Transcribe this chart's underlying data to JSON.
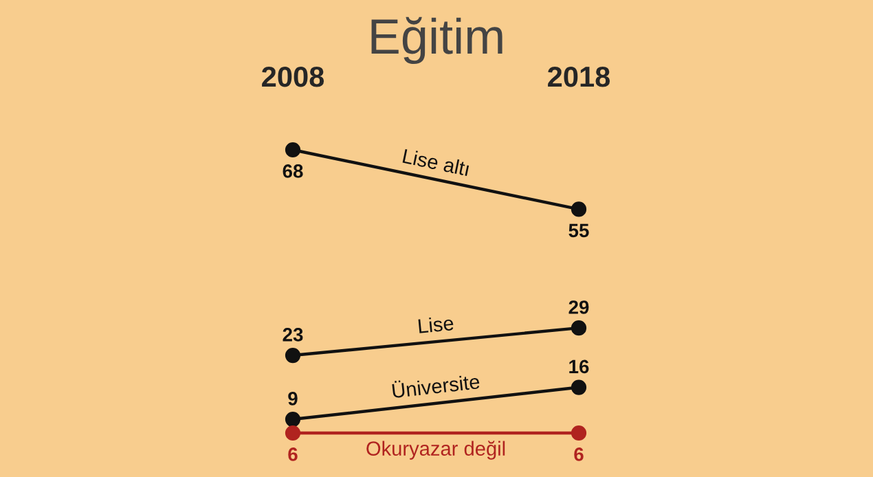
{
  "chart_data": {
    "type": "line",
    "title": "Eğitim",
    "categories": [
      "2008",
      "2018"
    ],
    "series": [
      {
        "name": "Lise altı",
        "color": "#111111",
        "values": [
          68,
          55
        ]
      },
      {
        "name": "Lise",
        "color": "#111111",
        "values": [
          23,
          29
        ]
      },
      {
        "name": "Üniversite",
        "color": "#111111",
        "values": [
          9,
          16
        ]
      },
      {
        "name": "Okuryazar değil",
        "color": "#b0231f",
        "values": [
          6,
          6
        ]
      }
    ],
    "data_labels": true,
    "marker": "circle",
    "line_style": "solid",
    "grid": false,
    "legend": false
  }
}
